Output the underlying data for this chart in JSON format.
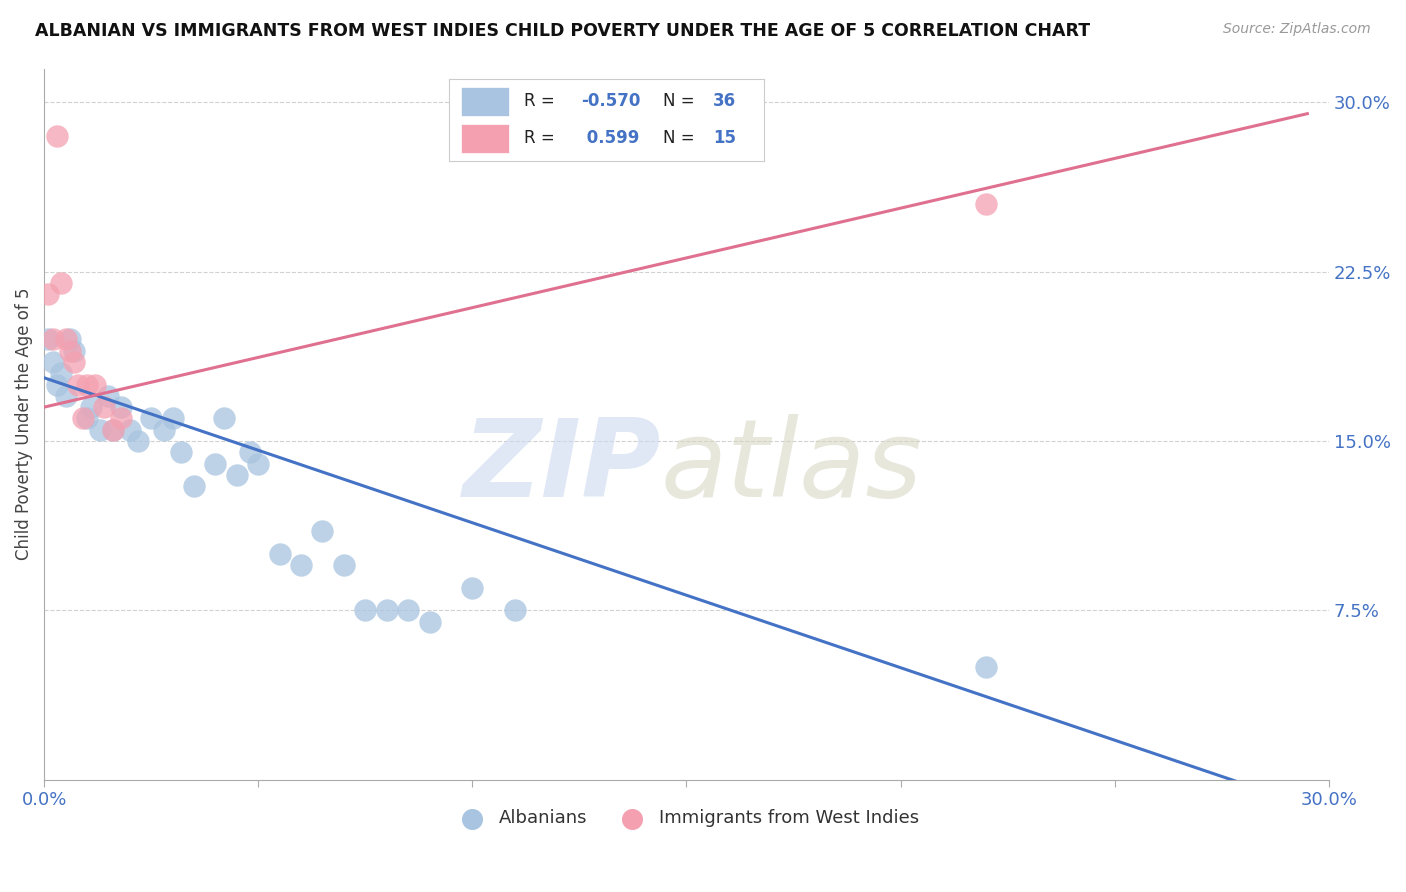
{
  "title": "ALBANIAN VS IMMIGRANTS FROM WEST INDIES CHILD POVERTY UNDER THE AGE OF 5 CORRELATION CHART",
  "source": "Source: ZipAtlas.com",
  "ylabel": "Child Poverty Under the Age of 5",
  "x_min": 0.0,
  "x_max": 0.3,
  "y_min": 0.0,
  "y_max": 0.315,
  "y_ticks_right": [
    0.075,
    0.15,
    0.225,
    0.3
  ],
  "y_tick_labels_right": [
    "7.5%",
    "15.0%",
    "22.5%",
    "30.0%"
  ],
  "albanian_color": "#a8c4e0",
  "westindies_color": "#f4a0b0",
  "albanian_line_color": "#4472c4",
  "westindies_line_color": "#e07090",
  "background_color": "#ffffff",
  "grid_color": "#cccccc",
  "albanian_x": [
    0.001,
    0.002,
    0.003,
    0.004,
    0.005,
    0.006,
    0.007,
    0.01,
    0.011,
    0.013,
    0.015,
    0.016,
    0.018,
    0.02,
    0.022,
    0.025,
    0.028,
    0.03,
    0.032,
    0.035,
    0.04,
    0.042,
    0.045,
    0.048,
    0.05,
    0.055,
    0.06,
    0.065,
    0.07,
    0.075,
    0.08,
    0.085,
    0.09,
    0.1,
    0.11,
    0.22
  ],
  "albanian_y": [
    0.195,
    0.185,
    0.175,
    0.18,
    0.17,
    0.195,
    0.19,
    0.16,
    0.165,
    0.155,
    0.17,
    0.155,
    0.165,
    0.155,
    0.15,
    0.16,
    0.155,
    0.16,
    0.145,
    0.13,
    0.14,
    0.16,
    0.135,
    0.145,
    0.14,
    0.1,
    0.095,
    0.11,
    0.095,
    0.075,
    0.075,
    0.075,
    0.07,
    0.085,
    0.075,
    0.05
  ],
  "westindies_x": [
    0.001,
    0.002,
    0.003,
    0.004,
    0.005,
    0.006,
    0.007,
    0.008,
    0.009,
    0.01,
    0.012,
    0.014,
    0.016,
    0.018,
    0.22
  ],
  "westindies_y": [
    0.215,
    0.195,
    0.285,
    0.22,
    0.195,
    0.19,
    0.185,
    0.175,
    0.16,
    0.175,
    0.175,
    0.165,
    0.155,
    0.16,
    0.255
  ],
  "blue_trend_x0": 0.0,
  "blue_trend_y0": 0.178,
  "blue_trend_x1": 0.285,
  "blue_trend_y1": -0.005,
  "pink_trend_x0": 0.0,
  "pink_trend_y0": 0.165,
  "pink_trend_x1": 0.295,
  "pink_trend_y1": 0.295
}
